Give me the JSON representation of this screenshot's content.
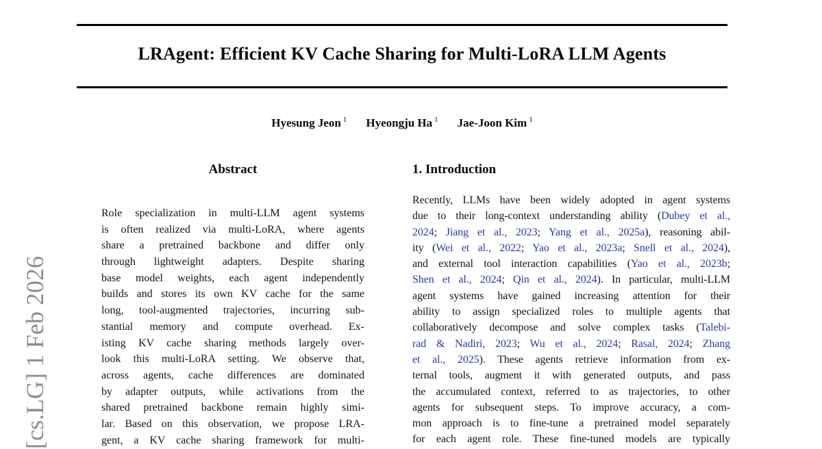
{
  "colors": {
    "text": "#111111",
    "citation_link_blue": "#2d3a9e",
    "watermark_gray": "#8e8e8e",
    "rule_black": "#000000",
    "background": "#ffffff"
  },
  "watermark": {
    "text": "[cs.LG] 1 Feb 2026"
  },
  "header": {
    "title": "LRAgent: Efficient KV Cache Sharing for Multi-LoRA LLM Agents",
    "authors": [
      {
        "name": "Hyesung Jeon",
        "sup": "1"
      },
      {
        "name": "Hyeongju Ha",
        "sup": "1"
      },
      {
        "name": "Jae-Joon Kim",
        "sup": "1"
      }
    ]
  },
  "abstract": {
    "heading": "Abstract",
    "lines": [
      "Role specialization in multi-LLM agent systems",
      "is often realized via multi-LoRA, where agents",
      "share a pretrained backbone and differ only",
      "through lightweight adapters. Despite sharing",
      "base model weights, each agent independently",
      "builds and stores its own KV cache for the same",
      "long, tool-augmented trajectories, incurring sub-",
      "stantial memory and compute overhead. Ex-",
      "isting KV cache sharing methods largely over-",
      "look this multi-LoRA setting. We observe that,",
      "across agents, cache differences are dominated",
      "by adapter outputs, while activations from the",
      "shared pretrained backbone remain highly simi-",
      "lar. Based on this observation, we propose LRA-",
      "gent, a KV cache sharing framework for multi-"
    ]
  },
  "intro": {
    "heading": "1. Introduction",
    "lines": [
      [
        {
          "t": "Recently, LLMs have been widely adopted in agent systems"
        }
      ],
      [
        {
          "t": "due to their long-context understanding ability ("
        },
        {
          "t": "Dubey et al.,",
          "l": true
        }
      ],
      [
        {
          "t": "2024",
          "l": true
        },
        {
          "t": "; "
        },
        {
          "t": "Jiang et al., 2023",
          "l": true
        },
        {
          "t": "; "
        },
        {
          "t": "Yang et al., 2025a",
          "l": true
        },
        {
          "t": "), reasoning abil-"
        }
      ],
      [
        {
          "t": "ity ("
        },
        {
          "t": "Wei et al., 2022",
          "l": true
        },
        {
          "t": "; "
        },
        {
          "t": "Yao et al., 2023a",
          "l": true
        },
        {
          "t": "; "
        },
        {
          "t": "Snell et al., 2024",
          "l": true
        },
        {
          "t": "),"
        }
      ],
      [
        {
          "t": "and external tool interaction capabilities ("
        },
        {
          "t": "Yao et al., 2023b",
          "l": true
        },
        {
          "t": ";"
        }
      ],
      [
        {
          "t": "Shen et al., 2024",
          "l": true
        },
        {
          "t": "; "
        },
        {
          "t": "Qin et al., 2024",
          "l": true
        },
        {
          "t": "). In particular, multi-LLM"
        }
      ],
      [
        {
          "t": "agent systems have gained increasing attention for their"
        }
      ],
      [
        {
          "t": "ability to assign specialized roles to multiple agents that"
        }
      ],
      [
        {
          "t": "collaboratively decompose and solve complex tasks ("
        },
        {
          "t": "Talebi-",
          "l": true
        }
      ],
      [
        {
          "t": "rad & Nadiri, 2023",
          "l": true
        },
        {
          "t": "; "
        },
        {
          "t": "Wu et al., 2024",
          "l": true
        },
        {
          "t": "; "
        },
        {
          "t": "Rasal, 2024",
          "l": true
        },
        {
          "t": "; "
        },
        {
          "t": "Zhang",
          "l": true
        }
      ],
      [
        {
          "t": "et al., 2025",
          "l": true
        },
        {
          "t": "). These agents retrieve information from ex-"
        }
      ],
      [
        {
          "t": "ternal tools, augment it with generated outputs, and pass"
        }
      ],
      [
        {
          "t": "the accumulated context, referred to as trajectories, to other"
        }
      ],
      [
        {
          "t": "agents for subsequent steps. To improve accuracy, a com-"
        }
      ],
      [
        {
          "t": "mon approach is to fine-tune a pretrained model separately"
        }
      ],
      [
        {
          "t": "for each agent role. These fine-tuned models are typically"
        }
      ]
    ]
  }
}
